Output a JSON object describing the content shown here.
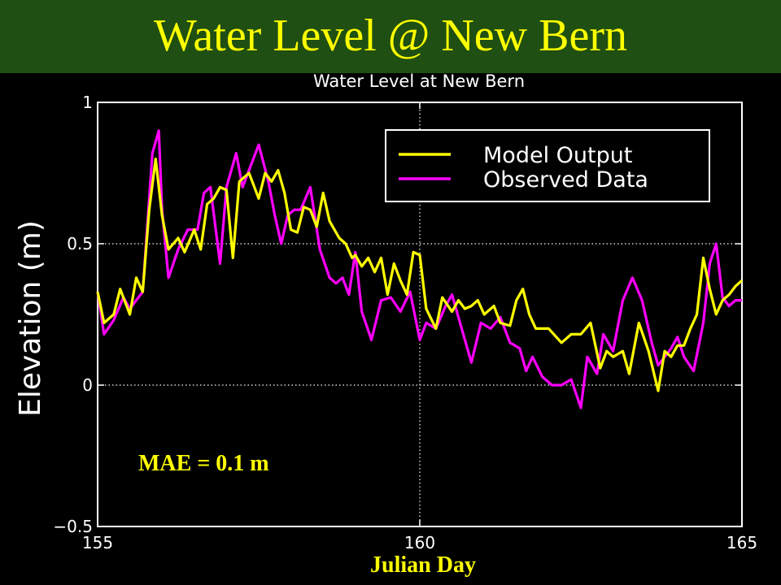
{
  "slide": {
    "title": "Water Level @ New Bern"
  },
  "chart_data": {
    "type": "line",
    "title": "Water Level at New Bern",
    "xlabel": "Julian Day",
    "ylabel": "Elevation (m)",
    "xlim": [
      155,
      165
    ],
    "ylim": [
      -0.5,
      1
    ],
    "xticks": [
      155,
      160,
      165
    ],
    "yticks": [
      -0.5,
      0,
      0.5,
      1
    ],
    "grid": "dotted, at x=160 and y=0, y=0.5",
    "legend": "top-right",
    "annotation": "MAE = 0.1 m",
    "series": [
      {
        "name": "Model Output",
        "color": "#ffff00",
        "x": [
          155.0,
          155.1,
          155.25,
          155.35,
          155.5,
          155.6,
          155.7,
          155.8,
          155.9,
          156.0,
          156.1,
          156.25,
          156.35,
          156.5,
          156.6,
          156.7,
          156.8,
          156.9,
          157.0,
          157.1,
          157.2,
          157.35,
          157.5,
          157.6,
          157.7,
          157.8,
          157.9,
          158.0,
          158.1,
          158.2,
          158.3,
          158.4,
          158.5,
          158.6,
          158.75,
          158.85,
          158.95,
          159.0,
          159.1,
          159.2,
          159.3,
          159.4,
          159.5,
          159.6,
          159.7,
          159.8,
          159.9,
          160.0,
          160.1,
          160.25,
          160.35,
          160.5,
          160.6,
          160.7,
          160.8,
          160.9,
          161.0,
          161.15,
          161.25,
          161.4,
          161.5,
          161.6,
          161.7,
          161.8,
          162.0,
          162.2,
          162.35,
          162.5,
          162.65,
          162.8,
          162.9,
          163.0,
          163.15,
          163.25,
          163.4,
          163.55,
          163.7,
          163.8,
          163.9,
          164.0,
          164.1,
          164.2,
          164.3,
          164.4,
          164.5,
          164.6,
          164.7,
          164.8,
          164.9,
          165.0
        ],
        "y": [
          0.33,
          0.22,
          0.25,
          0.34,
          0.25,
          0.38,
          0.33,
          0.62,
          0.8,
          0.6,
          0.48,
          0.52,
          0.47,
          0.55,
          0.48,
          0.64,
          0.66,
          0.7,
          0.69,
          0.45,
          0.72,
          0.75,
          0.66,
          0.75,
          0.72,
          0.76,
          0.68,
          0.55,
          0.54,
          0.63,
          0.62,
          0.56,
          0.68,
          0.58,
          0.52,
          0.5,
          0.45,
          0.46,
          0.42,
          0.45,
          0.4,
          0.45,
          0.32,
          0.43,
          0.37,
          0.32,
          0.47,
          0.46,
          0.27,
          0.2,
          0.31,
          0.26,
          0.3,
          0.27,
          0.28,
          0.3,
          0.25,
          0.28,
          0.22,
          0.21,
          0.3,
          0.34,
          0.25,
          0.2,
          0.2,
          0.15,
          0.18,
          0.18,
          0.22,
          0.06,
          0.12,
          0.1,
          0.12,
          0.04,
          0.22,
          0.12,
          -0.02,
          0.12,
          0.1,
          0.14,
          0.14,
          0.2,
          0.25,
          0.45,
          0.34,
          0.25,
          0.3,
          0.32,
          0.35,
          0.37
        ]
      },
      {
        "name": "Observed Data",
        "color": "#ff00ff",
        "x": [
          155.0,
          155.1,
          155.25,
          155.4,
          155.5,
          155.6,
          155.7,
          155.85,
          155.95,
          156.0,
          156.1,
          156.25,
          156.4,
          156.55,
          156.65,
          156.75,
          156.9,
          157.0,
          157.15,
          157.25,
          157.35,
          157.5,
          157.65,
          157.75,
          157.85,
          157.95,
          158.05,
          158.15,
          158.3,
          158.45,
          158.6,
          158.7,
          158.8,
          158.9,
          159.0,
          159.1,
          159.25,
          159.4,
          159.55,
          159.7,
          159.85,
          160.0,
          160.1,
          160.25,
          160.4,
          160.5,
          160.65,
          160.8,
          160.95,
          161.1,
          161.25,
          161.4,
          161.55,
          161.65,
          161.75,
          161.9,
          162.05,
          162.2,
          162.35,
          162.5,
          162.6,
          162.75,
          162.85,
          163.0,
          163.15,
          163.3,
          163.45,
          163.6,
          163.7,
          163.8,
          163.9,
          164.0,
          164.1,
          164.25,
          164.4,
          164.5,
          164.6,
          164.7,
          164.8,
          164.9,
          165.0
        ],
        "y": [
          0.33,
          0.18,
          0.23,
          0.31,
          0.27,
          0.3,
          0.33,
          0.82,
          0.9,
          0.62,
          0.38,
          0.48,
          0.55,
          0.55,
          0.68,
          0.7,
          0.43,
          0.7,
          0.82,
          0.7,
          0.76,
          0.85,
          0.72,
          0.6,
          0.5,
          0.6,
          0.62,
          0.62,
          0.7,
          0.48,
          0.38,
          0.36,
          0.38,
          0.32,
          0.47,
          0.26,
          0.16,
          0.3,
          0.31,
          0.26,
          0.33,
          0.16,
          0.22,
          0.2,
          0.28,
          0.32,
          0.2,
          0.08,
          0.22,
          0.2,
          0.24,
          0.15,
          0.13,
          0.05,
          0.1,
          0.03,
          0.0,
          0.0,
          0.02,
          -0.08,
          0.1,
          0.04,
          0.18,
          0.12,
          0.3,
          0.38,
          0.3,
          0.15,
          0.07,
          0.1,
          0.13,
          0.17,
          0.1,
          0.05,
          0.22,
          0.43,
          0.5,
          0.31,
          0.28,
          0.3,
          0.3
        ]
      }
    ]
  }
}
